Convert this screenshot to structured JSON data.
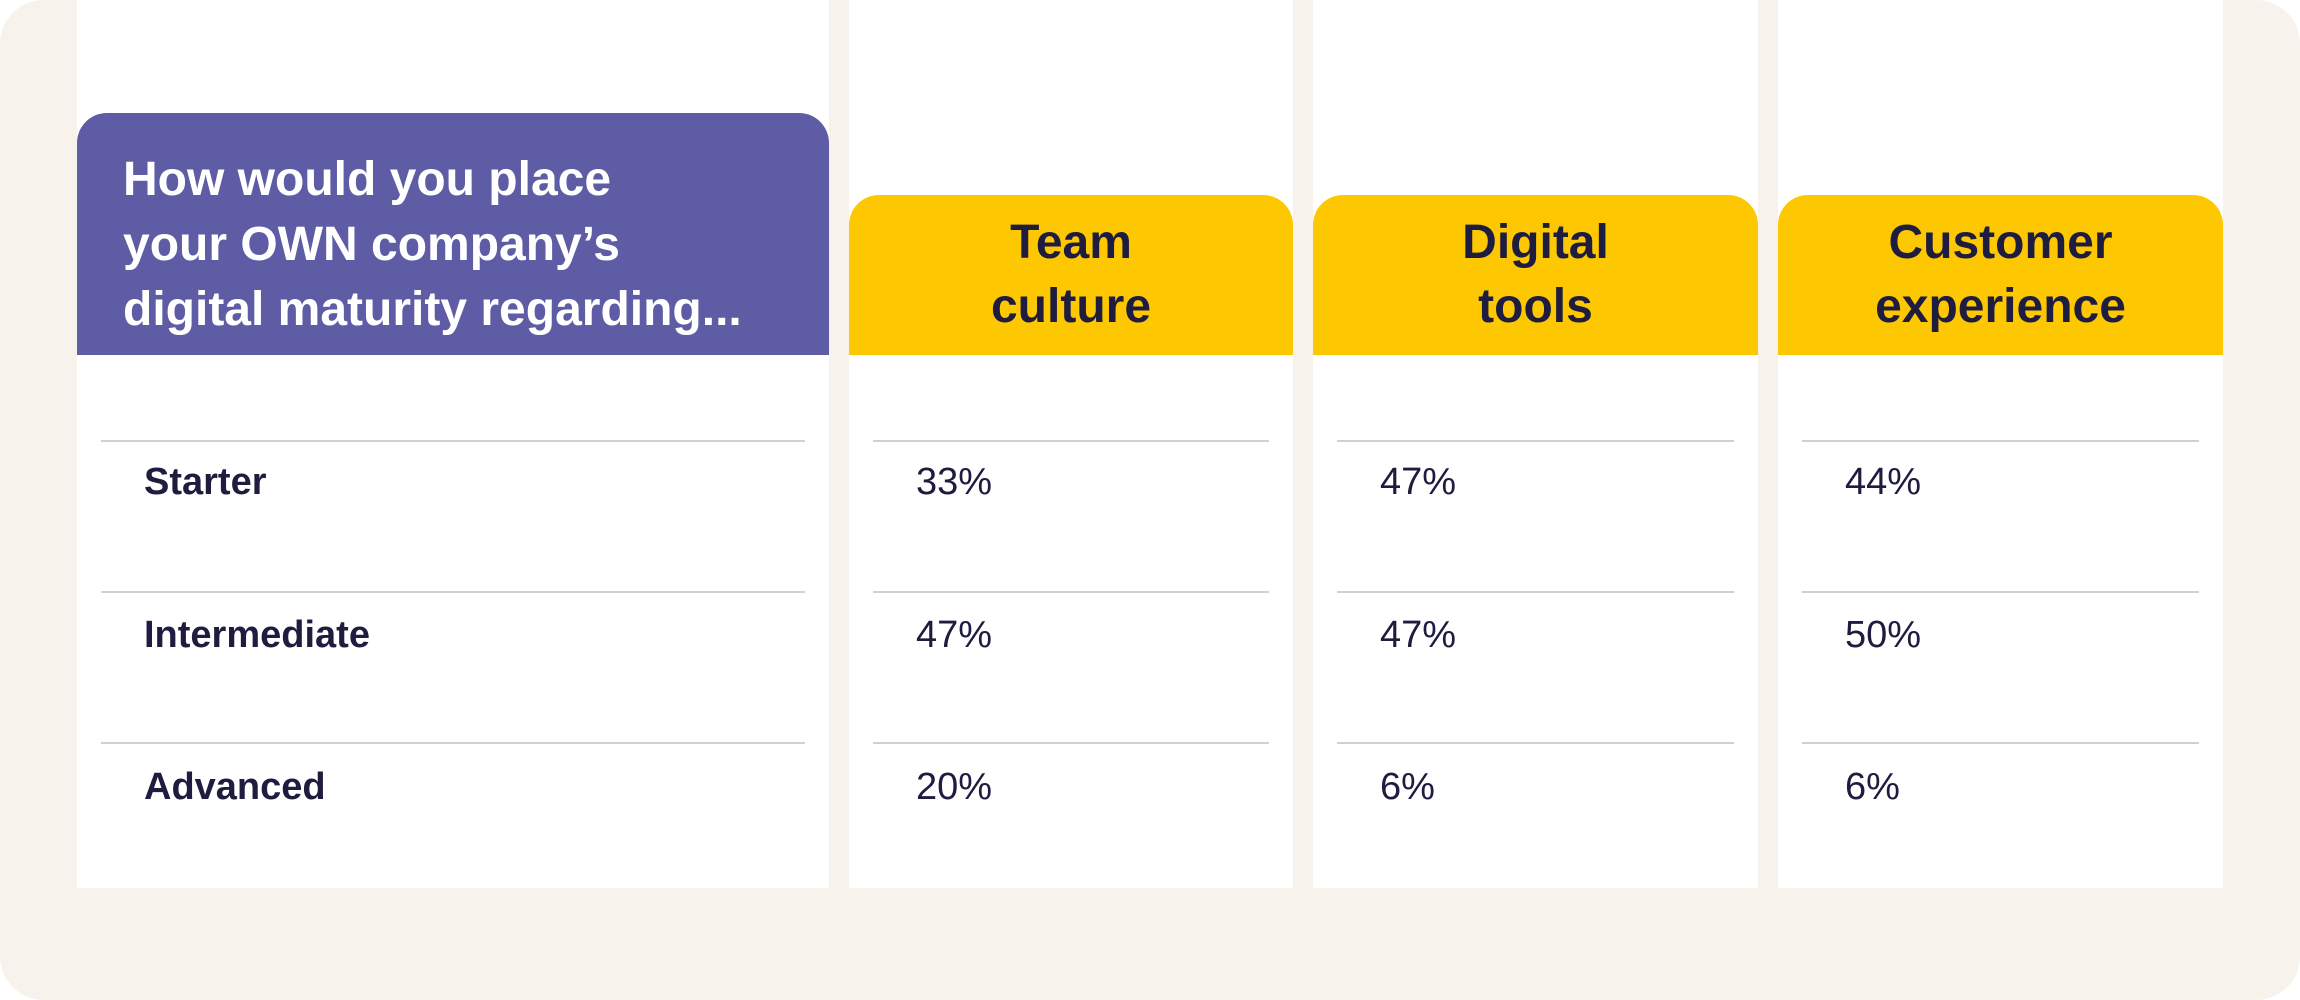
{
  "colors": {
    "panel_bg": "#f7f2ec",
    "question_header": "#5d5ca4",
    "metric_header": "#fdc801",
    "text": "#1e1c3f"
  },
  "question": "How would you place your OWN company’s digital maturity regarding...",
  "question_lines": [
    "How would you place",
    "your OWN company’s",
    "digital maturity regarding..."
  ],
  "chart_data": {
    "type": "table",
    "title": "How would you place your OWN company’s digital maturity regarding...",
    "columns": [
      "Team culture",
      "Digital tools",
      "Customer experience"
    ],
    "column_lines": [
      [
        "Team",
        "culture"
      ],
      [
        "Digital",
        "tools"
      ],
      [
        "Customer",
        "experience"
      ]
    ],
    "rows": [
      "Starter",
      "Intermediate",
      "Advanced"
    ],
    "values": [
      [
        "33%",
        "47%",
        "44%"
      ],
      [
        "47%",
        "47%",
        "50%"
      ],
      [
        "20%",
        "6%",
        "6%"
      ]
    ]
  }
}
